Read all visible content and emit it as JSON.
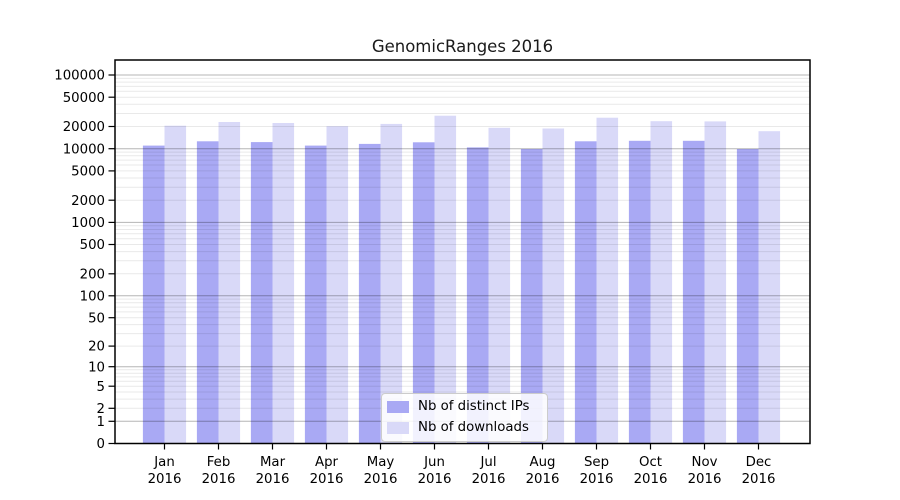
{
  "title": "GenomicRanges 2016",
  "chart_data": {
    "type": "bar",
    "title": "GenomicRanges 2016",
    "categories": [
      "Jan",
      "Feb",
      "Mar",
      "Apr",
      "May",
      "Jun",
      "Jul",
      "Aug",
      "Sep",
      "Oct",
      "Nov",
      "Dec"
    ],
    "x_tick_year": "2016",
    "series": [
      {
        "name": "Nb of distinct IPs",
        "color": "#a9a9f4",
        "values": [
          11000,
          12600,
          12300,
          11000,
          11600,
          12200,
          10400,
          9900,
          12600,
          12800,
          12800,
          9900
        ]
      },
      {
        "name": "Nb of downloads",
        "color": "#d9d9f8",
        "values": [
          20500,
          23000,
          22300,
          20200,
          21700,
          28000,
          19200,
          18800,
          26300,
          23600,
          23500,
          17300
        ]
      }
    ],
    "y_ticks": [
      0,
      1,
      2,
      5,
      10,
      20,
      50,
      100,
      200,
      500,
      1000,
      2000,
      5000,
      10000,
      20000,
      50000,
      100000
    ],
    "y_scale": "log10(value+1)",
    "ylim": [
      0,
      178000
    ],
    "xlabel": "",
    "ylabel": "",
    "grid": "on",
    "grid_major_color": "#b3b3b3",
    "grid_minor_color": "#e9e9e9",
    "legend_position": "lower center",
    "frame_color": "#000000"
  }
}
